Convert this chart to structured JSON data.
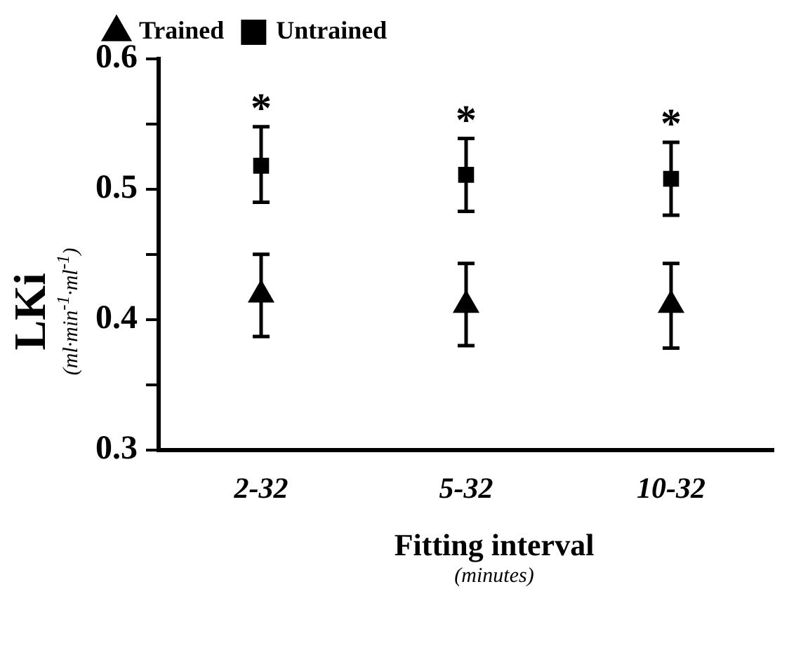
{
  "chart_data": {
    "type": "scatter",
    "xlabel": "Fitting interval\n(minutes)",
    "ylabel": "LKi\n(ml·min$^{-1}$·ml$^{-1}$)",
    "categories": [
      "2-32",
      "5-32",
      "10-32"
    ],
    "series": [
      {
        "name": "Trained",
        "color": "#000000",
        "marker": "triangle",
        "values": [
          0.419,
          0.411,
          0.411
        ],
        "errors": [
          [
            0.387,
            0.45
          ],
          [
            0.38,
            0.443
          ],
          [
            0.378,
            0.443
          ]
        ]
      },
      {
        "name": "Untrained",
        "color": "#000000",
        "marker": "square",
        "values": [
          0.518,
          0.511,
          0.508
        ],
        "errors": [
          [
            0.49,
            0.548
          ],
          [
            0.483,
            0.539
          ],
          [
            0.48,
            0.536
          ]
        ]
      }
    ],
    "ylim": [
      0.3,
      0.6
    ],
    "yticks": [
      0.3,
      {
        "value": 0.35,
        "label": null
      },
      0.4,
      {
        "value": 0.45,
        "label": null
      },
      0.5,
      {
        "value": 0.55,
        "label": null
      },
      0.6
    ],
    "grid": false,
    "legend": "top left",
    "annotations": [
      "*",
      "*",
      "*"
    ]
  }
}
